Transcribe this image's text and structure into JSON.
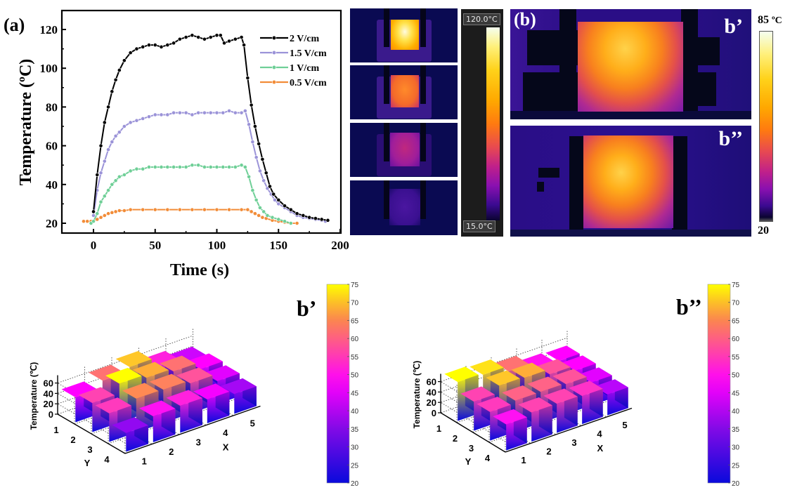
{
  "chart_data": [
    {
      "type": "line",
      "panel_label": "(a)",
      "title": "",
      "xlabel": "Time (s)",
      "ylabel": "Temperature (ºC)",
      "xlim": [
        -20,
        200
      ],
      "ylim": [
        15,
        130
      ],
      "xticks": [
        "0",
        "50",
        "100",
        "150",
        "200"
      ],
      "yticks": [
        "20",
        "40",
        "60",
        "80",
        "100",
        "120"
      ],
      "legend_position": "top-right",
      "grid": false,
      "series": [
        {
          "name": "2 V/cm",
          "color": "#000000",
          "x": [
            0,
            3,
            6,
            9,
            12,
            15,
            18,
            21,
            25,
            30,
            35,
            40,
            45,
            50,
            55,
            60,
            65,
            70,
            75,
            80,
            85,
            90,
            95,
            100,
            103,
            106,
            110,
            115,
            120,
            122,
            125,
            128,
            131,
            134,
            137,
            140,
            143,
            146,
            150,
            155,
            160,
            165,
            170,
            175,
            180,
            185,
            190
          ],
          "y": [
            26,
            45,
            60,
            72,
            80,
            88,
            94,
            99,
            104,
            108,
            110,
            111,
            112,
            112,
            111,
            112,
            113,
            115,
            116,
            117,
            116,
            115,
            116,
            117,
            117,
            113,
            114,
            115,
            116,
            112,
            95,
            81,
            70,
            61,
            53,
            46,
            39,
            35,
            32,
            29,
            27,
            25,
            24,
            23,
            22.5,
            22,
            21.5
          ]
        },
        {
          "name": "1.5 V/cm",
          "color": "#9b93d8",
          "x": [
            0,
            3,
            6,
            9,
            12,
            15,
            18,
            21,
            25,
            30,
            35,
            40,
            45,
            50,
            55,
            60,
            65,
            70,
            75,
            80,
            85,
            90,
            95,
            100,
            105,
            110,
            115,
            120,
            123,
            126,
            129,
            132,
            135,
            138,
            141,
            144,
            147,
            150,
            155,
            160,
            165,
            170,
            175,
            180,
            185,
            188
          ],
          "y": [
            24,
            37,
            46,
            52,
            58,
            62,
            65,
            67,
            70,
            72,
            73,
            74,
            75,
            76,
            76,
            76,
            77,
            77,
            77,
            76,
            77,
            77,
            77,
            77,
            77,
            78,
            77,
            77,
            78,
            71,
            62,
            54,
            47,
            42,
            38,
            35,
            32,
            30,
            28,
            26,
            24,
            23,
            22.5,
            22,
            21.5,
            21
          ]
        },
        {
          "name": "1 V/cm",
          "color": "#6fcf97",
          "x": [
            -2,
            0,
            3,
            6,
            9,
            12,
            15,
            18,
            21,
            25,
            30,
            35,
            40,
            45,
            50,
            55,
            60,
            65,
            70,
            75,
            80,
            85,
            90,
            95,
            100,
            105,
            110,
            115,
            120,
            123,
            126,
            129,
            132,
            135,
            138,
            141,
            145,
            150,
            155,
            160
          ],
          "y": [
            20,
            21,
            25,
            31,
            34,
            37,
            40,
            42,
            44,
            45,
            47,
            48,
            48,
            49,
            49,
            49,
            49,
            49,
            49,
            49,
            50,
            50,
            49,
            49,
            49,
            49,
            49,
            49,
            50,
            49,
            44,
            37,
            32,
            28,
            26,
            24,
            23,
            22,
            21,
            20
          ]
        },
        {
          "name": "0.5 V/cm",
          "color": "#f28c38",
          "x": [
            -8,
            -5,
            -2,
            0,
            3,
            6,
            9,
            12,
            15,
            18,
            21,
            25,
            30,
            40,
            50,
            60,
            70,
            80,
            90,
            100,
            110,
            120,
            125,
            128,
            131,
            134,
            137,
            140,
            145,
            150,
            155,
            160,
            165
          ],
          "y": [
            21,
            21,
            21,
            21,
            22,
            23,
            24,
            25,
            25.5,
            26,
            26.5,
            26.5,
            27,
            27,
            27,
            27,
            27,
            27,
            27,
            27,
            27,
            27,
            27,
            26,
            25,
            24,
            23,
            22.5,
            21.5,
            21,
            20.5,
            20,
            20
          ]
        }
      ]
    },
    {
      "type": "heatmap",
      "subtype": "bar3d",
      "panel_label": "b’",
      "zlabel": "Temperature (℃)",
      "xlabel": "X",
      "ylabel": "Y",
      "x_ticks": [
        "1",
        "2",
        "3",
        "4",
        "5"
      ],
      "y_ticks": [
        "1",
        "2",
        "3",
        "4"
      ],
      "z_ticks": [
        "0",
        "20",
        "40",
        "60"
      ],
      "colorbar_ticks": [
        "20",
        "25",
        "30",
        "35",
        "40",
        "45",
        "50",
        "55",
        "60",
        "65",
        "70",
        "75"
      ],
      "colorbar_range": [
        20,
        75
      ],
      "values_by_y": [
        [
          48,
          62,
          70,
          52,
          42
        ],
        [
          56,
          75,
          68,
          62,
          48
        ],
        [
          55,
          65,
          64,
          58,
          44
        ],
        [
          36,
          50,
          52,
          46,
          38
        ]
      ]
    },
    {
      "type": "heatmap",
      "subtype": "bar3d",
      "panel_label": "b’’",
      "zlabel": "Temperature (℃)",
      "xlabel": "X",
      "ylabel": "Y",
      "x_ticks": [
        "1",
        "2",
        "3",
        "4",
        "5"
      ],
      "y_ticks": [
        "1",
        "2",
        "3",
        "4"
      ],
      "z_ticks": [
        "0",
        "20",
        "40",
        "60"
      ],
      "colorbar_ticks": [
        "20",
        "25",
        "30",
        "35",
        "40",
        "45",
        "50",
        "55",
        "60",
        "65",
        "70",
        "75"
      ],
      "colorbar_range": [
        20,
        75
      ],
      "values_by_y": [
        [
          75,
          72,
          62,
          50,
          48
        ],
        [
          56,
          70,
          68,
          58,
          48
        ],
        [
          55,
          60,
          60,
          58,
          44
        ],
        [
          50,
          56,
          56,
          54,
          40
        ]
      ]
    }
  ],
  "thermal_strip": {
    "max_label": "120.0°C",
    "min_label": "15.0°C",
    "frames": 4
  },
  "panel_b": {
    "label": "(b)",
    "sub_labels": [
      "b’",
      "b’’"
    ],
    "colorbar_max": "85",
    "colorbar_unit": "ºC",
    "colorbar_min": "20"
  }
}
